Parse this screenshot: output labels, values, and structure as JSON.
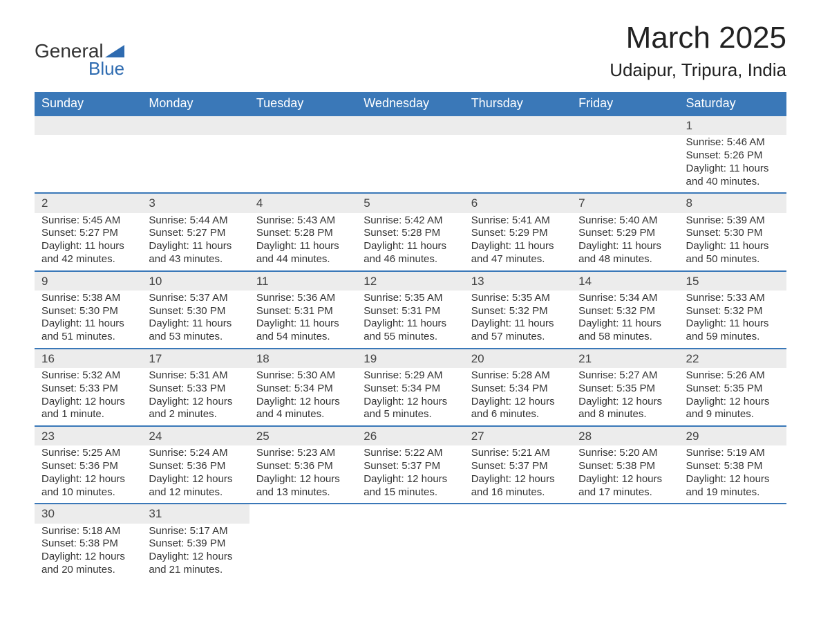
{
  "logo": {
    "text1": "General",
    "text2": "Blue",
    "brand_color": "#2e6bb0"
  },
  "title": "March 2025",
  "location": "Udaipur, Tripura, India",
  "header_bg": "#3a78b8",
  "header_fg": "#ffffff",
  "daynum_bg": "#ececec",
  "border_color": "#3a78b8",
  "text_color": "#333333",
  "background_color": "#ffffff",
  "font": {
    "title_size": 44,
    "location_size": 26,
    "header_size": 18,
    "daynum_size": 17,
    "body_size": 15
  },
  "columns": [
    "Sunday",
    "Monday",
    "Tuesday",
    "Wednesday",
    "Thursday",
    "Friday",
    "Saturday"
  ],
  "weeks": [
    [
      null,
      null,
      null,
      null,
      null,
      null,
      {
        "n": "1",
        "sr": "Sunrise: 5:46 AM",
        "ss": "Sunset: 5:26 PM",
        "d1": "Daylight: 11 hours",
        "d2": "and 40 minutes."
      }
    ],
    [
      {
        "n": "2",
        "sr": "Sunrise: 5:45 AM",
        "ss": "Sunset: 5:27 PM",
        "d1": "Daylight: 11 hours",
        "d2": "and 42 minutes."
      },
      {
        "n": "3",
        "sr": "Sunrise: 5:44 AM",
        "ss": "Sunset: 5:27 PM",
        "d1": "Daylight: 11 hours",
        "d2": "and 43 minutes."
      },
      {
        "n": "4",
        "sr": "Sunrise: 5:43 AM",
        "ss": "Sunset: 5:28 PM",
        "d1": "Daylight: 11 hours",
        "d2": "and 44 minutes."
      },
      {
        "n": "5",
        "sr": "Sunrise: 5:42 AM",
        "ss": "Sunset: 5:28 PM",
        "d1": "Daylight: 11 hours",
        "d2": "and 46 minutes."
      },
      {
        "n": "6",
        "sr": "Sunrise: 5:41 AM",
        "ss": "Sunset: 5:29 PM",
        "d1": "Daylight: 11 hours",
        "d2": "and 47 minutes."
      },
      {
        "n": "7",
        "sr": "Sunrise: 5:40 AM",
        "ss": "Sunset: 5:29 PM",
        "d1": "Daylight: 11 hours",
        "d2": "and 48 minutes."
      },
      {
        "n": "8",
        "sr": "Sunrise: 5:39 AM",
        "ss": "Sunset: 5:30 PM",
        "d1": "Daylight: 11 hours",
        "d2": "and 50 minutes."
      }
    ],
    [
      {
        "n": "9",
        "sr": "Sunrise: 5:38 AM",
        "ss": "Sunset: 5:30 PM",
        "d1": "Daylight: 11 hours",
        "d2": "and 51 minutes."
      },
      {
        "n": "10",
        "sr": "Sunrise: 5:37 AM",
        "ss": "Sunset: 5:30 PM",
        "d1": "Daylight: 11 hours",
        "d2": "and 53 minutes."
      },
      {
        "n": "11",
        "sr": "Sunrise: 5:36 AM",
        "ss": "Sunset: 5:31 PM",
        "d1": "Daylight: 11 hours",
        "d2": "and 54 minutes."
      },
      {
        "n": "12",
        "sr": "Sunrise: 5:35 AM",
        "ss": "Sunset: 5:31 PM",
        "d1": "Daylight: 11 hours",
        "d2": "and 55 minutes."
      },
      {
        "n": "13",
        "sr": "Sunrise: 5:35 AM",
        "ss": "Sunset: 5:32 PM",
        "d1": "Daylight: 11 hours",
        "d2": "and 57 minutes."
      },
      {
        "n": "14",
        "sr": "Sunrise: 5:34 AM",
        "ss": "Sunset: 5:32 PM",
        "d1": "Daylight: 11 hours",
        "d2": "and 58 minutes."
      },
      {
        "n": "15",
        "sr": "Sunrise: 5:33 AM",
        "ss": "Sunset: 5:32 PM",
        "d1": "Daylight: 11 hours",
        "d2": "and 59 minutes."
      }
    ],
    [
      {
        "n": "16",
        "sr": "Sunrise: 5:32 AM",
        "ss": "Sunset: 5:33 PM",
        "d1": "Daylight: 12 hours",
        "d2": "and 1 minute."
      },
      {
        "n": "17",
        "sr": "Sunrise: 5:31 AM",
        "ss": "Sunset: 5:33 PM",
        "d1": "Daylight: 12 hours",
        "d2": "and 2 minutes."
      },
      {
        "n": "18",
        "sr": "Sunrise: 5:30 AM",
        "ss": "Sunset: 5:34 PM",
        "d1": "Daylight: 12 hours",
        "d2": "and 4 minutes."
      },
      {
        "n": "19",
        "sr": "Sunrise: 5:29 AM",
        "ss": "Sunset: 5:34 PM",
        "d1": "Daylight: 12 hours",
        "d2": "and 5 minutes."
      },
      {
        "n": "20",
        "sr": "Sunrise: 5:28 AM",
        "ss": "Sunset: 5:34 PM",
        "d1": "Daylight: 12 hours",
        "d2": "and 6 minutes."
      },
      {
        "n": "21",
        "sr": "Sunrise: 5:27 AM",
        "ss": "Sunset: 5:35 PM",
        "d1": "Daylight: 12 hours",
        "d2": "and 8 minutes."
      },
      {
        "n": "22",
        "sr": "Sunrise: 5:26 AM",
        "ss": "Sunset: 5:35 PM",
        "d1": "Daylight: 12 hours",
        "d2": "and 9 minutes."
      }
    ],
    [
      {
        "n": "23",
        "sr": "Sunrise: 5:25 AM",
        "ss": "Sunset: 5:36 PM",
        "d1": "Daylight: 12 hours",
        "d2": "and 10 minutes."
      },
      {
        "n": "24",
        "sr": "Sunrise: 5:24 AM",
        "ss": "Sunset: 5:36 PM",
        "d1": "Daylight: 12 hours",
        "d2": "and 12 minutes."
      },
      {
        "n": "25",
        "sr": "Sunrise: 5:23 AM",
        "ss": "Sunset: 5:36 PM",
        "d1": "Daylight: 12 hours",
        "d2": "and 13 minutes."
      },
      {
        "n": "26",
        "sr": "Sunrise: 5:22 AM",
        "ss": "Sunset: 5:37 PM",
        "d1": "Daylight: 12 hours",
        "d2": "and 15 minutes."
      },
      {
        "n": "27",
        "sr": "Sunrise: 5:21 AM",
        "ss": "Sunset: 5:37 PM",
        "d1": "Daylight: 12 hours",
        "d2": "and 16 minutes."
      },
      {
        "n": "28",
        "sr": "Sunrise: 5:20 AM",
        "ss": "Sunset: 5:38 PM",
        "d1": "Daylight: 12 hours",
        "d2": "and 17 minutes."
      },
      {
        "n": "29",
        "sr": "Sunrise: 5:19 AM",
        "ss": "Sunset: 5:38 PM",
        "d1": "Daylight: 12 hours",
        "d2": "and 19 minutes."
      }
    ],
    [
      {
        "n": "30",
        "sr": "Sunrise: 5:18 AM",
        "ss": "Sunset: 5:38 PM",
        "d1": "Daylight: 12 hours",
        "d2": "and 20 minutes."
      },
      {
        "n": "31",
        "sr": "Sunrise: 5:17 AM",
        "ss": "Sunset: 5:39 PM",
        "d1": "Daylight: 12 hours",
        "d2": "and 21 minutes."
      },
      null,
      null,
      null,
      null,
      null
    ]
  ]
}
